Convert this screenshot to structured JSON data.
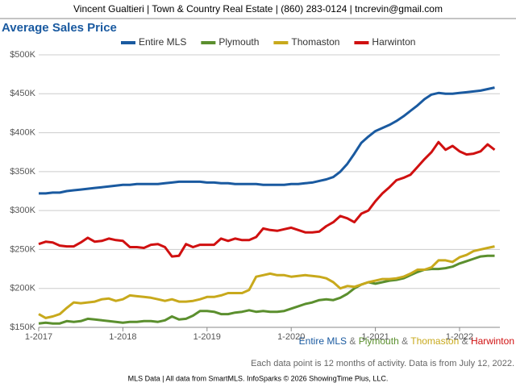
{
  "header": "Vincent Gualtieri | Town & Country Real Estate | (860) 283-0124 | tncrevin@gmail.com",
  "chart_data": {
    "type": "line",
    "title": "Average Sales Price",
    "categories": [
      "1-2017",
      null,
      null,
      null,
      null,
      null,
      null,
      null,
      null,
      null,
      null,
      null,
      "1-2018",
      null,
      null,
      null,
      null,
      null,
      null,
      null,
      null,
      null,
      null,
      null,
      "1-2019",
      null,
      null,
      null,
      null,
      null,
      null,
      null,
      null,
      null,
      null,
      null,
      "1-2020",
      null,
      null,
      null,
      null,
      null,
      null,
      null,
      null,
      null,
      null,
      null,
      "1-2021",
      null,
      null,
      null,
      null,
      null,
      null,
      null,
      null,
      null,
      null,
      null,
      "1-2022",
      null,
      null,
      null,
      null,
      null
    ],
    "series": [
      {
        "name": "Entire MLS",
        "color": "#1a5aa0",
        "values": [
          322,
          322,
          323,
          323,
          325,
          326,
          327,
          328,
          329,
          330,
          331,
          332,
          333,
          333,
          334,
          334,
          334,
          334,
          335,
          336,
          337,
          337,
          337,
          337,
          336,
          336,
          335,
          335,
          334,
          334,
          334,
          334,
          333,
          333,
          333,
          333,
          334,
          334,
          335,
          336,
          338,
          340,
          343,
          350,
          360,
          373,
          387,
          395,
          402,
          406,
          410,
          415,
          421,
          428,
          435,
          443,
          449,
          451,
          450,
          450,
          451,
          452,
          453,
          454,
          456,
          458
        ]
      },
      {
        "name": "Plymouth",
        "color": "#5b8f2e",
        "values": [
          155,
          156,
          155,
          155,
          158,
          157,
          158,
          161,
          160,
          159,
          158,
          157,
          156,
          157,
          157,
          158,
          158,
          157,
          159,
          164,
          160,
          161,
          165,
          171,
          171,
          170,
          167,
          167,
          169,
          170,
          172,
          170,
          171,
          170,
          170,
          171,
          174,
          177,
          180,
          182,
          185,
          186,
          185,
          188,
          193,
          200,
          205,
          208,
          206,
          208,
          210,
          211,
          213,
          217,
          221,
          224,
          225,
          225,
          226,
          228,
          232,
          235,
          238,
          241,
          242,
          242
        ]
      },
      {
        "name": "Thomaston",
        "color": "#c8a91c",
        "values": [
          167,
          162,
          164,
          167,
          175,
          182,
          181,
          182,
          183,
          186,
          187,
          184,
          186,
          191,
          190,
          189,
          188,
          186,
          184,
          186,
          183,
          183,
          184,
          186,
          189,
          189,
          191,
          194,
          194,
          194,
          198,
          215,
          217,
          219,
          217,
          217,
          215,
          216,
          217,
          216,
          215,
          213,
          208,
          200,
          203,
          202,
          205,
          208,
          210,
          212,
          212,
          213,
          215,
          219,
          224,
          224,
          227,
          236,
          236,
          234,
          240,
          243,
          248,
          250,
          252,
          254
        ]
      },
      {
        "name": "Harwinton",
        "color": "#d01010",
        "values": [
          257,
          260,
          259,
          255,
          254,
          254,
          259,
          265,
          260,
          261,
          264,
          262,
          261,
          253,
          253,
          252,
          256,
          257,
          253,
          241,
          242,
          257,
          253,
          256,
          256,
          256,
          264,
          261,
          264,
          262,
          262,
          266,
          277,
          275,
          274,
          276,
          278,
          275,
          272,
          272,
          273,
          280,
          285,
          293,
          290,
          285,
          296,
          300,
          312,
          322,
          330,
          339,
          342,
          346,
          356,
          366,
          375,
          388,
          378,
          383,
          376,
          372,
          373,
          376,
          385,
          378
        ]
      }
    ],
    "ylim": [
      150,
      500
    ],
    "yticks": [
      {
        "value": 150,
        "label": "$150K"
      },
      {
        "value": 200,
        "label": "$200K"
      },
      {
        "value": 250,
        "label": "$250K"
      },
      {
        "value": 300,
        "label": "$300K"
      },
      {
        "value": 350,
        "label": "$350K"
      },
      {
        "value": 400,
        "label": "$400K"
      },
      {
        "value": 450,
        "label": "$450K"
      },
      {
        "value": 500,
        "label": "$500K"
      }
    ],
    "grid": true,
    "legend_joiner": "&",
    "note": "Each data point is 12 months of activity. Data is from July 12, 2022."
  },
  "footer": "MLS Data | All data from SmartMLS. InfoSparks © 2026 ShowingTime Plus, LLC."
}
